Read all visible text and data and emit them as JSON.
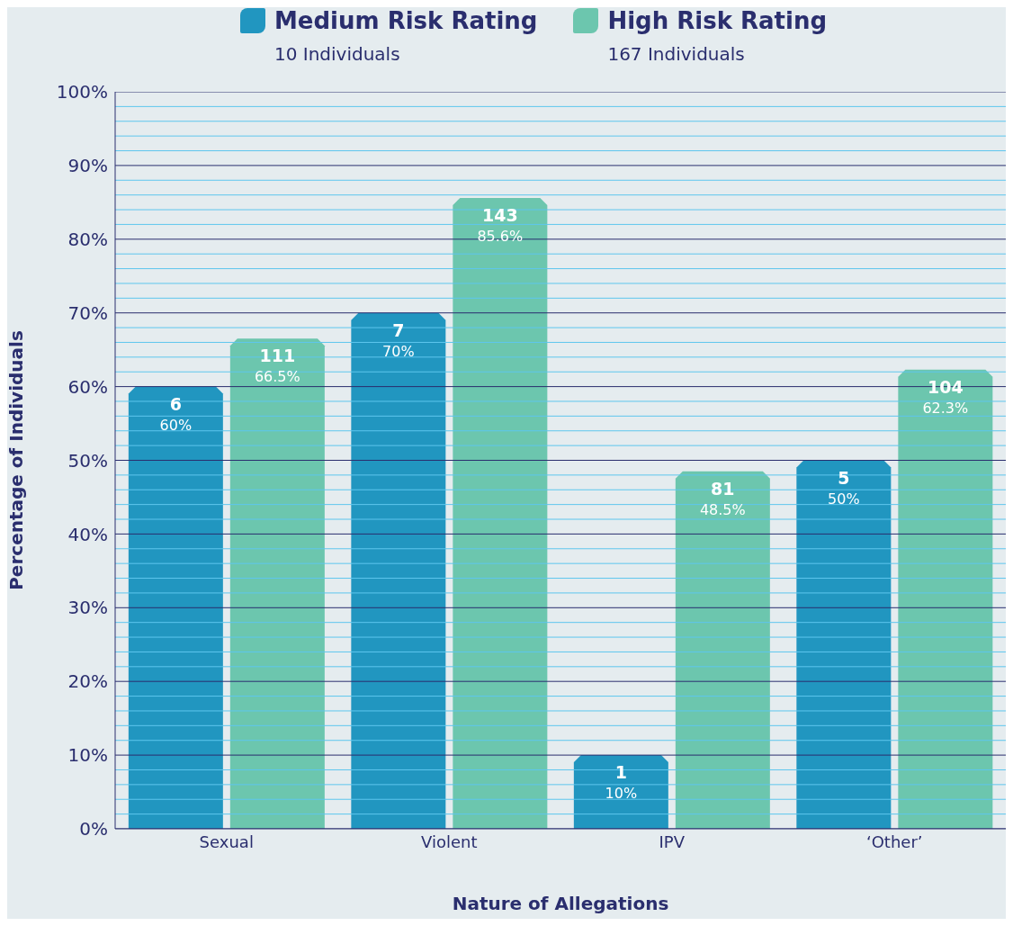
{
  "chart_data": {
    "type": "bar",
    "xlabel": "Nature of Allegations",
    "ylabel": "Percentage of Individuals",
    "categories": [
      "Sexual",
      "Violent",
      "IPV",
      "‘Other’"
    ],
    "series": [
      {
        "name": "Medium Risk Rating",
        "color": "#2196c0",
        "values": [
          60,
          70,
          10,
          50
        ],
        "value_labels": [
          "6\n60%",
          "7\n70%",
          "1\n10%",
          "5\n50%"
        ]
      },
      {
        "name": "High Risk Rating",
        "color": "#6cc6ae",
        "values": [
          66.5,
          85.6,
          48.5,
          62.3
        ],
        "value_labels": [
          "111\n66.5%",
          "143\n85.6%",
          "81\n48.5%",
          "104\n62.3%"
        ]
      }
    ],
    "annotations": [
      "10 Individuals",
      "167 Individuals"
    ],
    "ylim": [
      0,
      100
    ],
    "yticks": [
      {
        "value": 0,
        "label": "0%"
      },
      {
        "value": 2,
        "label": null
      },
      {
        "value": 4,
        "label": null
      },
      {
        "value": 6,
        "label": null
      },
      {
        "value": 8,
        "label": null
      },
      {
        "value": 10,
        "label": "10%"
      },
      {
        "value": 12,
        "label": null
      },
      {
        "value": 14,
        "label": null
      },
      {
        "value": 16,
        "label": null
      },
      {
        "value": 18,
        "label": null
      },
      {
        "value": 20,
        "label": "20%"
      },
      {
        "value": 22,
        "label": null
      },
      {
        "value": 24,
        "label": null
      },
      {
        "value": 26,
        "label": null
      },
      {
        "value": 28,
        "label": null
      },
      {
        "value": 30,
        "label": "30%"
      },
      {
        "value": 32,
        "label": null
      },
      {
        "value": 34,
        "label": null
      },
      {
        "value": 36,
        "label": null
      },
      {
        "value": 38,
        "label": null
      },
      {
        "value": 40,
        "label": "40%"
      },
      {
        "value": 42,
        "label": null
      },
      {
        "value": 44,
        "label": null
      },
      {
        "value": 46,
        "label": null
      },
      {
        "value": 48,
        "label": null
      },
      {
        "value": 50,
        "label": "50%"
      },
      {
        "value": 52,
        "label": null
      },
      {
        "value": 54,
        "label": null
      },
      {
        "value": 56,
        "label": null
      },
      {
        "value": 58,
        "label": null
      },
      {
        "value": 60,
        "label": "60%"
      },
      {
        "value": 62,
        "label": null
      },
      {
        "value": 64,
        "label": null
      },
      {
        "value": 66,
        "label": null
      },
      {
        "value": 68,
        "label": null
      },
      {
        "value": 70,
        "label": "70%"
      },
      {
        "value": 72,
        "label": null
      },
      {
        "value": 74,
        "label": null
      },
      {
        "value": 76,
        "label": null
      },
      {
        "value": 78,
        "label": null
      },
      {
        "value": 80,
        "label": "80%"
      },
      {
        "value": 82,
        "label": null
      },
      {
        "value": 84,
        "label": null
      },
      {
        "value": 86,
        "label": null
      },
      {
        "value": 88,
        "label": null
      },
      {
        "value": 90,
        "label": "90%"
      },
      {
        "value": 92,
        "label": null
      },
      {
        "value": 94,
        "label": null
      },
      {
        "value": 96,
        "label": null
      },
      {
        "value": 98,
        "label": null
      },
      {
        "value": 100,
        "label": "100%"
      }
    ],
    "grid": "y",
    "legend": "top"
  }
}
